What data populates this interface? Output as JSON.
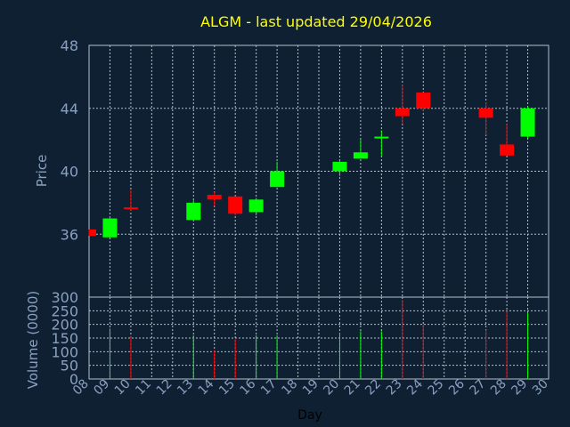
{
  "chart_data": {
    "type": "candlestick",
    "title": "ALGM - last updated 29/04/2026",
    "price_axis": {
      "label": "Price",
      "ylim": [
        32,
        48
      ],
      "ticks": [
        36,
        40,
        44,
        48
      ]
    },
    "volume_axis": {
      "label": "Volume (0000)",
      "ylim": [
        0,
        300
      ],
      "ticks": [
        0,
        50,
        100,
        150,
        200,
        250,
        300
      ]
    },
    "xlabel": "Day",
    "x_ticks": [
      "08",
      "09",
      "10",
      "11",
      "12",
      "13",
      "14",
      "15",
      "16",
      "17",
      "18",
      "19",
      "20",
      "21",
      "22",
      "23",
      "24",
      "25",
      "26",
      "27",
      "28",
      "29",
      "30"
    ],
    "grid": true,
    "up_color": "#00ff00",
    "down_color": "#ff0000",
    "candles": [
      {
        "day": "08",
        "open": 36.3,
        "high": 36.3,
        "low": 35.9,
        "close": 35.9,
        "volume": 0
      },
      {
        "day": "09",
        "open": 35.8,
        "high": 37.1,
        "low": 35.8,
        "close": 37.0,
        "volume": 185
      },
      {
        "day": "10",
        "open": 37.7,
        "high": 38.8,
        "low": 37.5,
        "close": 37.6,
        "volume": 155
      },
      {
        "day": "13",
        "open": 36.9,
        "high": 38.2,
        "low": 36.9,
        "close": 38.0,
        "volume": 160
      },
      {
        "day": "14",
        "open": 38.5,
        "high": 38.7,
        "low": 37.8,
        "close": 38.2,
        "volume": 105
      },
      {
        "day": "15",
        "open": 38.4,
        "high": 38.4,
        "low": 37.2,
        "close": 37.3,
        "volume": 145
      },
      {
        "day": "16",
        "open": 37.4,
        "high": 38.3,
        "low": 37.2,
        "close": 38.2,
        "volume": 160
      },
      {
        "day": "17",
        "open": 39.0,
        "high": 40.6,
        "low": 39.0,
        "close": 40.0,
        "volume": 160
      },
      {
        "day": "20",
        "open": 40.0,
        "high": 40.7,
        "low": 39.7,
        "close": 40.6,
        "volume": 170
      },
      {
        "day": "21",
        "open": 40.8,
        "high": 42.0,
        "low": 40.8,
        "close": 41.2,
        "volume": 175
      },
      {
        "day": "22",
        "open": 42.2,
        "high": 42.6,
        "low": 41.0,
        "close": 42.2,
        "volume": 175
      },
      {
        "day": "23",
        "open": 44.0,
        "high": 45.5,
        "low": 43.0,
        "close": 43.5,
        "volume": 290
      },
      {
        "day": "24",
        "open": 45.0,
        "high": 45.0,
        "low": 43.8,
        "close": 44.0,
        "volume": 200
      },
      {
        "day": "27",
        "open": 44.0,
        "high": 44.4,
        "low": 42.3,
        "close": 43.4,
        "volume": 180
      },
      {
        "day": "28",
        "open": 41.7,
        "high": 43.0,
        "low": 41.0,
        "close": 41.0,
        "volume": 250
      },
      {
        "day": "29",
        "open": 42.2,
        "high": 44.1,
        "low": 42.1,
        "close": 44.0,
        "volume": 245
      }
    ]
  }
}
